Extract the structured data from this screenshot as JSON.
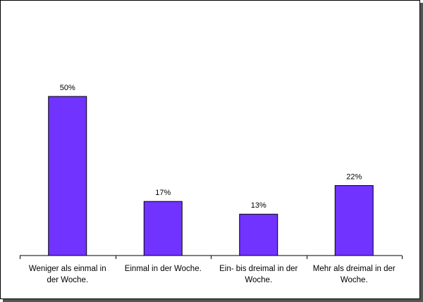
{
  "chart_data": {
    "type": "bar",
    "categories": [
      [
        "Weniger als einmal in",
        "der Woche."
      ],
      [
        "Einmal in der Woche."
      ],
      [
        "Ein- bis dreimal in der",
        "Woche."
      ],
      [
        "Mehr als dreimal in der",
        "Woche."
      ]
    ],
    "values": [
      50,
      17,
      13,
      22
    ],
    "data_labels": [
      "50%",
      "17%",
      "13%",
      "22%"
    ],
    "unit": "%",
    "ylim": [
      0,
      60
    ],
    "grid": false,
    "legend": "none",
    "bar_color": "#7133FF",
    "bar_edge_color": "#000000",
    "title": "",
    "xlabel": "",
    "ylabel": ""
  }
}
